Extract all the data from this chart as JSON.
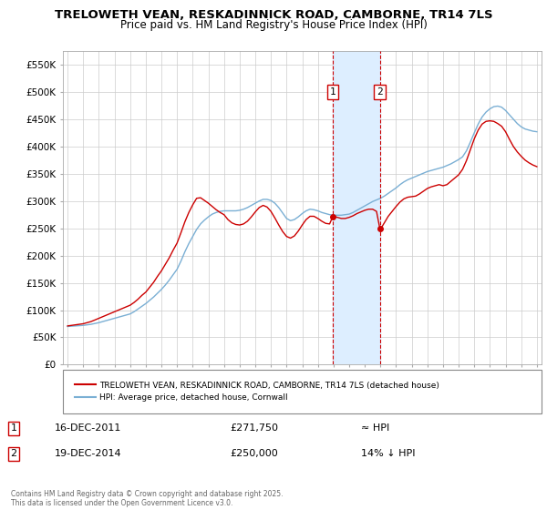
{
  "title": "TRELOWETH VEAN, RESKADINNICK ROAD, CAMBORNE, TR14 7LS",
  "subtitle": "Price paid vs. HM Land Registry's House Price Index (HPI)",
  "xlim_start": 1994.7,
  "xlim_end": 2025.3,
  "ylim": [
    0,
    575000
  ],
  "yticks": [
    0,
    50000,
    100000,
    150000,
    200000,
    250000,
    300000,
    350000,
    400000,
    450000,
    500000,
    550000
  ],
  "ytick_labels": [
    "£0",
    "£50K",
    "£100K",
    "£150K",
    "£200K",
    "£250K",
    "£300K",
    "£350K",
    "£400K",
    "£450K",
    "£500K",
    "£550K"
  ],
  "sale1_date": 2011.96,
  "sale1_price": 271750,
  "sale2_date": 2014.96,
  "sale2_price": 250000,
  "sale_color": "#cc0000",
  "hpi_color": "#7aafd4",
  "shade_color": "#ddeeff",
  "marker_box_color": "#cc0000",
  "legend_label_red": "TRELOWETH VEAN, RESKADINNICK ROAD, CAMBORNE, TR14 7LS (detached house)",
  "legend_label_blue": "HPI: Average price, detached house, Cornwall",
  "footnote": "Contains HM Land Registry data © Crown copyright and database right 2025.\nThis data is licensed under the Open Government Licence v3.0.",
  "hpi_data": [
    [
      1995.0,
      70000
    ],
    [
      1995.25,
      70500
    ],
    [
      1995.5,
      71000
    ],
    [
      1995.75,
      71500
    ],
    [
      1996.0,
      72000
    ],
    [
      1996.25,
      73000
    ],
    [
      1996.5,
      74000
    ],
    [
      1996.75,
      75500
    ],
    [
      1997.0,
      77000
    ],
    [
      1997.25,
      79000
    ],
    [
      1997.5,
      81000
    ],
    [
      1997.75,
      83000
    ],
    [
      1998.0,
      85000
    ],
    [
      1998.25,
      87000
    ],
    [
      1998.5,
      89000
    ],
    [
      1998.75,
      91000
    ],
    [
      1999.0,
      93000
    ],
    [
      1999.25,
      97000
    ],
    [
      1999.5,
      102000
    ],
    [
      1999.75,
      107000
    ],
    [
      2000.0,
      112000
    ],
    [
      2000.25,
      118000
    ],
    [
      2000.5,
      124000
    ],
    [
      2000.75,
      131000
    ],
    [
      2001.0,
      138000
    ],
    [
      2001.25,
      146000
    ],
    [
      2001.5,
      155000
    ],
    [
      2001.75,
      165000
    ],
    [
      2002.0,
      175000
    ],
    [
      2002.25,
      190000
    ],
    [
      2002.5,
      207000
    ],
    [
      2002.75,
      222000
    ],
    [
      2003.0,
      235000
    ],
    [
      2003.25,
      248000
    ],
    [
      2003.5,
      258000
    ],
    [
      2003.75,
      265000
    ],
    [
      2004.0,
      271000
    ],
    [
      2004.25,
      276000
    ],
    [
      2004.5,
      279000
    ],
    [
      2004.75,
      281000
    ],
    [
      2005.0,
      282000
    ],
    [
      2005.25,
      282000
    ],
    [
      2005.5,
      282000
    ],
    [
      2005.75,
      282000
    ],
    [
      2006.0,
      283000
    ],
    [
      2006.25,
      285000
    ],
    [
      2006.5,
      288000
    ],
    [
      2006.75,
      292000
    ],
    [
      2007.0,
      296000
    ],
    [
      2007.25,
      300000
    ],
    [
      2007.5,
      303000
    ],
    [
      2007.75,
      303000
    ],
    [
      2008.0,
      301000
    ],
    [
      2008.25,
      296000
    ],
    [
      2008.5,
      288000
    ],
    [
      2008.75,
      278000
    ],
    [
      2009.0,
      268000
    ],
    [
      2009.25,
      264000
    ],
    [
      2009.5,
      266000
    ],
    [
      2009.75,
      271000
    ],
    [
      2010.0,
      277000
    ],
    [
      2010.25,
      282000
    ],
    [
      2010.5,
      285000
    ],
    [
      2010.75,
      284000
    ],
    [
      2011.0,
      282000
    ],
    [
      2011.25,
      279000
    ],
    [
      2011.5,
      277000
    ],
    [
      2011.75,
      275000
    ],
    [
      2012.0,
      274000
    ],
    [
      2012.25,
      274000
    ],
    [
      2012.5,
      274000
    ],
    [
      2012.75,
      275000
    ],
    [
      2013.0,
      276000
    ],
    [
      2013.25,
      279000
    ],
    [
      2013.5,
      283000
    ],
    [
      2013.75,
      287000
    ],
    [
      2014.0,
      291000
    ],
    [
      2014.25,
      295000
    ],
    [
      2014.5,
      299000
    ],
    [
      2014.75,
      302000
    ],
    [
      2015.0,
      305000
    ],
    [
      2015.25,
      309000
    ],
    [
      2015.5,
      314000
    ],
    [
      2015.75,
      319000
    ],
    [
      2016.0,
      324000
    ],
    [
      2016.25,
      330000
    ],
    [
      2016.5,
      335000
    ],
    [
      2016.75,
      339000
    ],
    [
      2017.0,
      342000
    ],
    [
      2017.25,
      345000
    ],
    [
      2017.5,
      348000
    ],
    [
      2017.75,
      351000
    ],
    [
      2018.0,
      354000
    ],
    [
      2018.25,
      356000
    ],
    [
      2018.5,
      358000
    ],
    [
      2018.75,
      360000
    ],
    [
      2019.0,
      362000
    ],
    [
      2019.25,
      365000
    ],
    [
      2019.5,
      368000
    ],
    [
      2019.75,
      372000
    ],
    [
      2020.0,
      376000
    ],
    [
      2020.25,
      381000
    ],
    [
      2020.5,
      392000
    ],
    [
      2020.75,
      408000
    ],
    [
      2021.0,
      425000
    ],
    [
      2021.25,
      441000
    ],
    [
      2021.5,
      454000
    ],
    [
      2021.75,
      463000
    ],
    [
      2022.0,
      469000
    ],
    [
      2022.25,
      473000
    ],
    [
      2022.5,
      474000
    ],
    [
      2022.75,
      472000
    ],
    [
      2023.0,
      466000
    ],
    [
      2023.25,
      458000
    ],
    [
      2023.5,
      450000
    ],
    [
      2023.75,
      442000
    ],
    [
      2024.0,
      436000
    ],
    [
      2024.25,
      432000
    ],
    [
      2024.5,
      430000
    ],
    [
      2024.75,
      428000
    ],
    [
      2025.0,
      427000
    ]
  ],
  "red_data": [
    [
      1995.0,
      71000
    ],
    [
      1995.25,
      72000
    ],
    [
      1995.5,
      73000
    ],
    [
      1995.75,
      74000
    ],
    [
      1996.0,
      75000
    ],
    [
      1996.25,
      77000
    ],
    [
      1996.5,
      79000
    ],
    [
      1996.75,
      82000
    ],
    [
      1997.0,
      85000
    ],
    [
      1997.25,
      88000
    ],
    [
      1997.5,
      91000
    ],
    [
      1997.75,
      94000
    ],
    [
      1998.0,
      97000
    ],
    [
      1998.25,
      100000
    ],
    [
      1998.5,
      103000
    ],
    [
      1998.75,
      106000
    ],
    [
      1999.0,
      109000
    ],
    [
      1999.25,
      114000
    ],
    [
      1999.5,
      120000
    ],
    [
      1999.75,
      127000
    ],
    [
      2000.0,
      133000
    ],
    [
      2000.25,
      142000
    ],
    [
      2000.5,
      151000
    ],
    [
      2000.75,
      162000
    ],
    [
      2001.0,
      172000
    ],
    [
      2001.25,
      184000
    ],
    [
      2001.5,
      196000
    ],
    [
      2001.75,
      210000
    ],
    [
      2002.0,
      223000
    ],
    [
      2002.25,
      242000
    ],
    [
      2002.5,
      262000
    ],
    [
      2002.75,
      279000
    ],
    [
      2003.0,
      293000
    ],
    [
      2003.25,
      305000
    ],
    [
      2003.5,
      306000
    ],
    [
      2003.75,
      301000
    ],
    [
      2004.0,
      296000
    ],
    [
      2004.25,
      290000
    ],
    [
      2004.5,
      284000
    ],
    [
      2004.75,
      279000
    ],
    [
      2005.0,
      275000
    ],
    [
      2005.25,
      266000
    ],
    [
      2005.5,
      260000
    ],
    [
      2005.75,
      257000
    ],
    [
      2006.0,
      256000
    ],
    [
      2006.25,
      258000
    ],
    [
      2006.5,
      263000
    ],
    [
      2006.75,
      271000
    ],
    [
      2007.0,
      280000
    ],
    [
      2007.25,
      288000
    ],
    [
      2007.5,
      292000
    ],
    [
      2007.75,
      289000
    ],
    [
      2008.0,
      281000
    ],
    [
      2008.25,
      269000
    ],
    [
      2008.5,
      256000
    ],
    [
      2008.75,
      244000
    ],
    [
      2009.0,
      235000
    ],
    [
      2009.25,
      232000
    ],
    [
      2009.5,
      236000
    ],
    [
      2009.75,
      245000
    ],
    [
      2010.0,
      256000
    ],
    [
      2010.25,
      266000
    ],
    [
      2010.5,
      272000
    ],
    [
      2010.75,
      272000
    ],
    [
      2011.0,
      268000
    ],
    [
      2011.25,
      263000
    ],
    [
      2011.5,
      259000
    ],
    [
      2011.75,
      258000
    ],
    [
      2011.96,
      271750
    ],
    [
      2012.0,
      272000
    ],
    [
      2012.25,
      270000
    ],
    [
      2012.5,
      268000
    ],
    [
      2012.75,
      268000
    ],
    [
      2013.0,
      270000
    ],
    [
      2013.25,
      273000
    ],
    [
      2013.5,
      277000
    ],
    [
      2013.75,
      280000
    ],
    [
      2014.0,
      283000
    ],
    [
      2014.25,
      285000
    ],
    [
      2014.5,
      285000
    ],
    [
      2014.75,
      281000
    ],
    [
      2014.96,
      250000
    ],
    [
      2015.0,
      248000
    ],
    [
      2015.25,
      260000
    ],
    [
      2015.5,
      272000
    ],
    [
      2015.75,
      281000
    ],
    [
      2016.0,
      290000
    ],
    [
      2016.25,
      298000
    ],
    [
      2016.5,
      304000
    ],
    [
      2016.75,
      307000
    ],
    [
      2017.0,
      308000
    ],
    [
      2017.25,
      309000
    ],
    [
      2017.5,
      313000
    ],
    [
      2017.75,
      318000
    ],
    [
      2018.0,
      323000
    ],
    [
      2018.25,
      326000
    ],
    [
      2018.5,
      328000
    ],
    [
      2018.75,
      330000
    ],
    [
      2019.0,
      328000
    ],
    [
      2019.25,
      330000
    ],
    [
      2019.5,
      336000
    ],
    [
      2019.75,
      342000
    ],
    [
      2020.0,
      348000
    ],
    [
      2020.25,
      358000
    ],
    [
      2020.5,
      374000
    ],
    [
      2020.75,
      394000
    ],
    [
      2021.0,
      414000
    ],
    [
      2021.25,
      430000
    ],
    [
      2021.5,
      441000
    ],
    [
      2021.75,
      446000
    ],
    [
      2022.0,
      447000
    ],
    [
      2022.25,
      446000
    ],
    [
      2022.5,
      442000
    ],
    [
      2022.75,
      437000
    ],
    [
      2023.0,
      427000
    ],
    [
      2023.25,
      413000
    ],
    [
      2023.5,
      400000
    ],
    [
      2023.75,
      390000
    ],
    [
      2024.0,
      382000
    ],
    [
      2024.25,
      375000
    ],
    [
      2024.5,
      370000
    ],
    [
      2024.75,
      366000
    ],
    [
      2025.0,
      363000
    ]
  ]
}
